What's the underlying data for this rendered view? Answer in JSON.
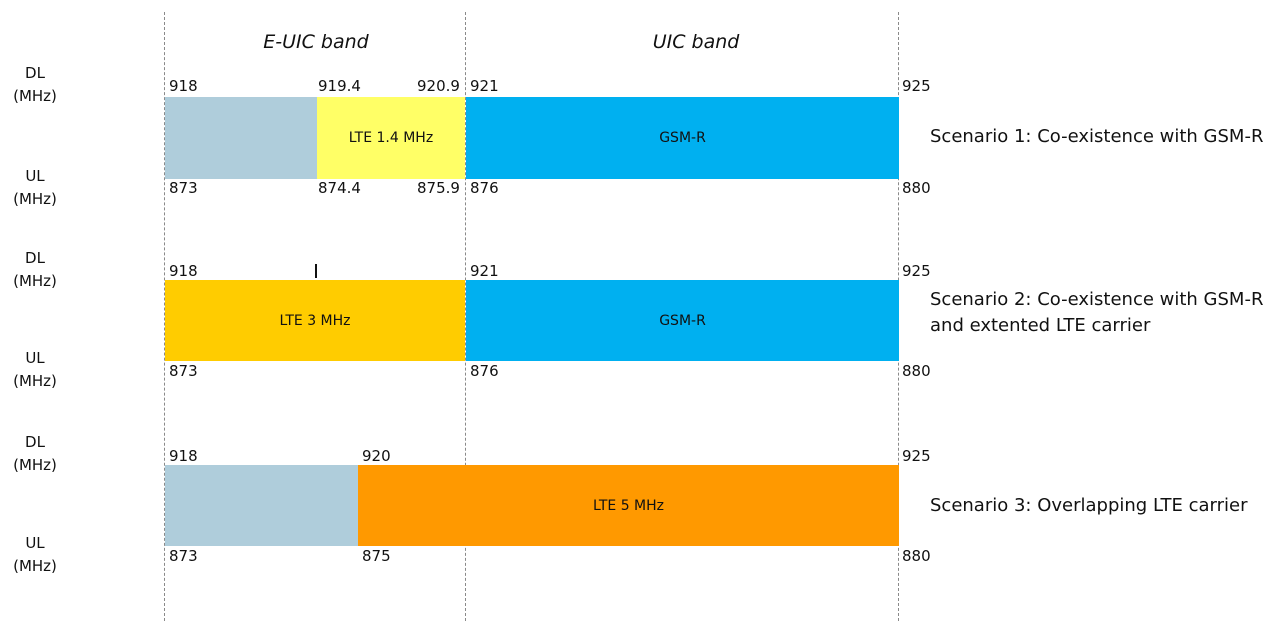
{
  "band_titles": {
    "euic": "E-UIC band",
    "uic": "UIC band"
  },
  "axis": {
    "dl": "DL",
    "ul": "UL",
    "unit": "(MHz)"
  },
  "colors": {
    "unused": "#afcddb",
    "lte_1_4": "#ffff66",
    "gsm_r": "#00b0f0",
    "lte_3": "#ffcc00",
    "lte_5": "#ff9900"
  },
  "scenarios": [
    {
      "label": "Scenario 1: Co-existence with GSM-R",
      "label_line2": "",
      "blocks": [
        "",
        "LTE 1.4 MHz",
        "GSM-R"
      ],
      "dl": [
        "918",
        "919.4",
        "920.9",
        "921",
        "925"
      ],
      "ul": [
        "873",
        "874.4",
        "875.9",
        "876",
        "880"
      ]
    },
    {
      "label": "Scenario 2:  Co-existence with GSM-R",
      "label_line2": "and extented LTE carrier",
      "blocks": [
        "LTE  3 MHz",
        "GSM-R"
      ],
      "dl": [
        "918",
        "921",
        "925"
      ],
      "ul": [
        "873",
        "876",
        "880"
      ]
    },
    {
      "label": "Scenario 3: Overlapping LTE carrier",
      "label_line2": "",
      "blocks": [
        "",
        "LTE  5 MHz"
      ],
      "dl": [
        "918",
        "920",
        "925"
      ],
      "ul": [
        "873",
        "875",
        "880"
      ]
    }
  ]
}
